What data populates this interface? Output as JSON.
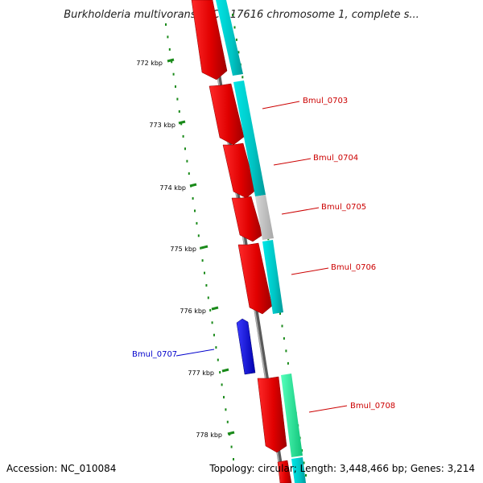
{
  "header": {
    "title": "Burkholderia multivorans ATCC 17616 chromosome 1, complete s..."
  },
  "footer": {
    "accession": "Accession: NC_010084",
    "summary": "Topology: circular; Length: 3,448,466 bp; Genes: 3,214"
  },
  "scale": {
    "ticks": [
      "772 kbp",
      "773 kbp",
      "774 kbp",
      "775 kbp",
      "776 kbp",
      "777 kbp",
      "778 kbp"
    ]
  },
  "genes": [
    {
      "name": "Bmul_0703",
      "strand": "forward",
      "color": "#cc0000"
    },
    {
      "name": "Bmul_0704",
      "strand": "forward",
      "color": "#cc0000"
    },
    {
      "name": "Bmul_0705",
      "strand": "forward",
      "color": "#cc0000"
    },
    {
      "name": "Bmul_0706",
      "strand": "forward",
      "color": "#cc0000"
    },
    {
      "name": "Bmul_0707",
      "strand": "reverse",
      "color": "#0000cc"
    },
    {
      "name": "Bmul_0708",
      "strand": "forward",
      "color": "#cc0000"
    }
  ],
  "colors": {
    "forward_gene": "#ff0000",
    "reverse_gene": "#0000ff",
    "cds_cyan": "#00c8c8",
    "cds_gray": "#bbbbbb",
    "cds_green": "#22ee99",
    "backbone": "#7a7a7a",
    "tick": "#1a8a1a"
  }
}
